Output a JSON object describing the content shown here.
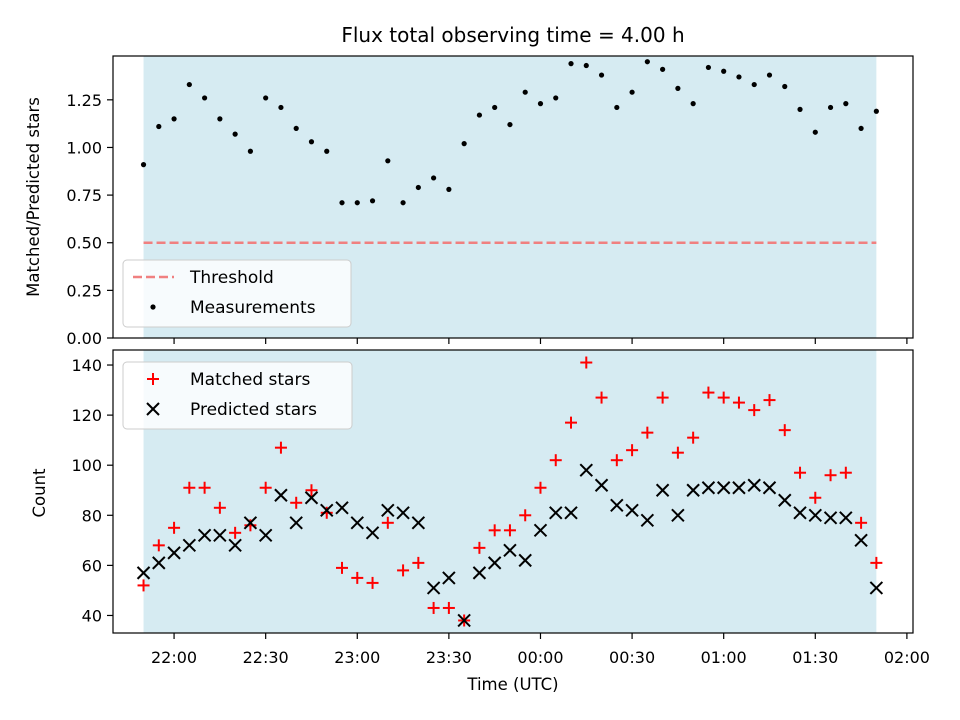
{
  "chart_data": [
    {
      "type": "scatter",
      "title": "Flux total observing time = 4.00 h",
      "xlabel": "",
      "ylabel": "Matched/Predicted stars",
      "ylim": [
        0,
        1.48
      ],
      "yticks": [
        "0.00",
        "0.25",
        "0.50",
        "0.75",
        "1.00",
        "1.25"
      ],
      "grid": false,
      "legend_position": "lower-left",
      "shaded_span": {
        "start": "21:50",
        "end": "01:50",
        "color": "#add8e6"
      },
      "threshold": {
        "name": "Threshold",
        "value": 0.5,
        "color": "#f08080",
        "style": "dashed"
      },
      "series": [
        {
          "name": "Measurements",
          "color": "#000000",
          "marker": "dot",
          "points": [
            [
              "21:50",
              0.91
            ],
            [
              "21:55",
              1.11
            ],
            [
              "22:00",
              1.15
            ],
            [
              "22:05",
              1.33
            ],
            [
              "22:10",
              1.26
            ],
            [
              "22:15",
              1.15
            ],
            [
              "22:20",
              1.07
            ],
            [
              "22:25",
              0.98
            ],
            [
              "22:30",
              1.26
            ],
            [
              "22:35",
              1.21
            ],
            [
              "22:40",
              1.1
            ],
            [
              "22:45",
              1.03
            ],
            [
              "22:50",
              0.98
            ],
            [
              "22:55",
              0.71
            ],
            [
              "23:00",
              0.71
            ],
            [
              "23:05",
              0.72
            ],
            [
              "23:10",
              0.93
            ],
            [
              "23:15",
              0.71
            ],
            [
              "23:20",
              0.79
            ],
            [
              "23:25",
              0.84
            ],
            [
              "23:30",
              0.78
            ],
            [
              "23:35",
              1.02
            ],
            [
              "23:40",
              1.17
            ],
            [
              "23:45",
              1.21
            ],
            [
              "23:50",
              1.12
            ],
            [
              "23:55",
              1.29
            ],
            [
              "00:00",
              1.23
            ],
            [
              "00:05",
              1.26
            ],
            [
              "00:10",
              1.44
            ],
            [
              "00:15",
              1.43
            ],
            [
              "00:20",
              1.38
            ],
            [
              "00:25",
              1.21
            ],
            [
              "00:30",
              1.29
            ],
            [
              "00:35",
              1.45
            ],
            [
              "00:40",
              1.41
            ],
            [
              "00:45",
              1.31
            ],
            [
              "00:50",
              1.23
            ],
            [
              "00:55",
              1.42
            ],
            [
              "01:00",
              1.4
            ],
            [
              "01:05",
              1.37
            ],
            [
              "01:10",
              1.33
            ],
            [
              "01:15",
              1.38
            ],
            [
              "01:20",
              1.32
            ],
            [
              "01:25",
              1.2
            ],
            [
              "01:30",
              1.08
            ],
            [
              "01:35",
              1.21
            ],
            [
              "01:40",
              1.23
            ],
            [
              "01:45",
              1.1
            ],
            [
              "01:50",
              1.19
            ]
          ]
        }
      ]
    },
    {
      "type": "scatter",
      "title": "",
      "xlabel": "Time (UTC)",
      "ylabel": "Count",
      "ylim": [
        33,
        146
      ],
      "yticks": [
        "40",
        "60",
        "80",
        "100",
        "120",
        "140"
      ],
      "xlim": [
        "21:40",
        "02:02"
      ],
      "xticks": [
        "22:00",
        "22:30",
        "23:00",
        "23:30",
        "00:00",
        "00:30",
        "01:00",
        "01:30",
        "02:00"
      ],
      "grid": false,
      "legend_position": "top-left",
      "shaded_span": {
        "start": "21:50",
        "end": "01:50",
        "color": "#add8e6"
      },
      "series": [
        {
          "name": "Matched stars",
          "color": "#ff0000",
          "marker": "plus",
          "points": [
            [
              "21:50",
              52
            ],
            [
              "21:55",
              68
            ],
            [
              "22:00",
              75
            ],
            [
              "22:05",
              91
            ],
            [
              "22:10",
              91
            ],
            [
              "22:15",
              83
            ],
            [
              "22:20",
              73
            ],
            [
              "22:25",
              76
            ],
            [
              "22:30",
              91
            ],
            [
              "22:35",
              107
            ],
            [
              "22:40",
              85
            ],
            [
              "22:45",
              90
            ],
            [
              "22:50",
              81
            ],
            [
              "22:55",
              59
            ],
            [
              "23:00",
              55
            ],
            [
              "23:05",
              53
            ],
            [
              "23:10",
              77
            ],
            [
              "23:15",
              58
            ],
            [
              "23:20",
              61
            ],
            [
              "23:25",
              43
            ],
            [
              "23:30",
              43
            ],
            [
              "23:35",
              38
            ],
            [
              "23:40",
              67
            ],
            [
              "23:45",
              74
            ],
            [
              "23:50",
              74
            ],
            [
              "23:55",
              80
            ],
            [
              "00:00",
              91
            ],
            [
              "00:05",
              102
            ],
            [
              "00:10",
              117
            ],
            [
              "00:15",
              141
            ],
            [
              "00:20",
              127
            ],
            [
              "00:25",
              102
            ],
            [
              "00:30",
              106
            ],
            [
              "00:35",
              113
            ],
            [
              "00:40",
              127
            ],
            [
              "00:45",
              105
            ],
            [
              "00:50",
              111
            ],
            [
              "00:55",
              129
            ],
            [
              "01:00",
              127
            ],
            [
              "01:05",
              125
            ],
            [
              "01:10",
              122
            ],
            [
              "01:15",
              126
            ],
            [
              "01:20",
              114
            ],
            [
              "01:25",
              97
            ],
            [
              "01:30",
              87
            ],
            [
              "01:35",
              96
            ],
            [
              "01:40",
              97
            ],
            [
              "01:45",
              77
            ],
            [
              "01:50",
              61
            ]
          ]
        },
        {
          "name": "Predicted stars",
          "color": "#000000",
          "marker": "x",
          "points": [
            [
              "21:50",
              57
            ],
            [
              "21:55",
              61
            ],
            [
              "22:00",
              65
            ],
            [
              "22:05",
              68
            ],
            [
              "22:10",
              72
            ],
            [
              "22:15",
              72
            ],
            [
              "22:20",
              68
            ],
            [
              "22:25",
              77
            ],
            [
              "22:30",
              72
            ],
            [
              "22:35",
              88
            ],
            [
              "22:40",
              77
            ],
            [
              "22:45",
              87
            ],
            [
              "22:50",
              82
            ],
            [
              "22:55",
              83
            ],
            [
              "23:00",
              77
            ],
            [
              "23:05",
              73
            ],
            [
              "23:10",
              82
            ],
            [
              "23:15",
              81
            ],
            [
              "23:20",
              77
            ],
            [
              "23:25",
              51
            ],
            [
              "23:30",
              55
            ],
            [
              "23:35",
              38
            ],
            [
              "23:40",
              57
            ],
            [
              "23:45",
              61
            ],
            [
              "23:50",
              66
            ],
            [
              "23:55",
              62
            ],
            [
              "00:00",
              74
            ],
            [
              "00:05",
              81
            ],
            [
              "00:10",
              81
            ],
            [
              "00:15",
              98
            ],
            [
              "00:20",
              92
            ],
            [
              "00:25",
              84
            ],
            [
              "00:30",
              82
            ],
            [
              "00:35",
              78
            ],
            [
              "00:40",
              90
            ],
            [
              "00:45",
              80
            ],
            [
              "00:50",
              90
            ],
            [
              "00:55",
              91
            ],
            [
              "01:00",
              91
            ],
            [
              "01:05",
              91
            ],
            [
              "01:10",
              92
            ],
            [
              "01:15",
              91
            ],
            [
              "01:20",
              86
            ],
            [
              "01:25",
              81
            ],
            [
              "01:30",
              80
            ],
            [
              "01:35",
              79
            ],
            [
              "01:40",
              79
            ],
            [
              "01:45",
              70
            ],
            [
              "01:50",
              51
            ]
          ]
        }
      ]
    }
  ]
}
